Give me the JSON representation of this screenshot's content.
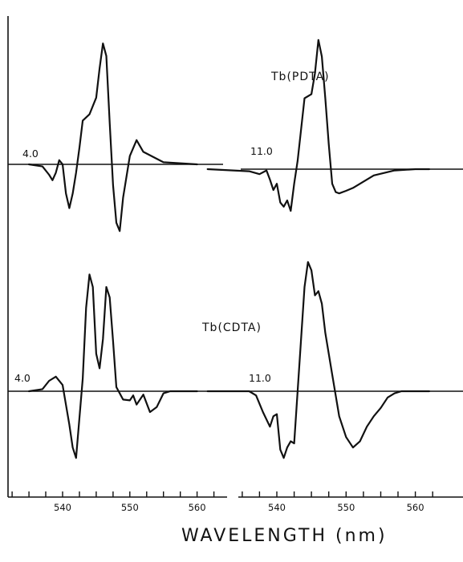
{
  "chart_data": [
    {
      "type": "line",
      "compound": "Tb(PDTA)",
      "ph": "4.0",
      "x": [
        535,
        537,
        538,
        538.5,
        539,
        539.5,
        540,
        540.5,
        541,
        541.5,
        542,
        542.5,
        543,
        544,
        545,
        545.5,
        546,
        546.5,
        547,
        547.5,
        548,
        548.5,
        549,
        550,
        551,
        552,
        555,
        560
      ],
      "y": [
        0,
        -0.05,
        -0.25,
        -0.38,
        -0.2,
        0.1,
        0,
        -0.7,
        -1.05,
        -0.7,
        -0.2,
        0.4,
        1.05,
        1.2,
        1.6,
        2.3,
        2.9,
        2.6,
        1.0,
        -0.5,
        -1.4,
        -1.6,
        -0.8,
        0.2,
        0.58,
        0.3,
        0.05,
        0
      ],
      "xlim": [
        530,
        562
      ],
      "ylabel": "",
      "xlabel": ""
    },
    {
      "type": "line",
      "compound": "Tb(PDTA)",
      "ph": "11.0",
      "x": [
        530,
        536,
        537.5,
        538.5,
        539,
        539.5,
        540,
        540.5,
        541,
        541.5,
        542,
        542.5,
        543,
        544,
        545,
        545.5,
        546,
        546.5,
        547,
        547.5,
        548,
        548.5,
        549,
        550,
        551,
        552,
        554,
        557,
        560,
        562
      ],
      "y": [
        0,
        -0.05,
        -0.12,
        -0.03,
        -0.25,
        -0.5,
        -0.35,
        -0.8,
        -0.9,
        -0.75,
        -1.0,
        -0.35,
        0.2,
        1.7,
        1.8,
        2.3,
        3.1,
        2.7,
        1.7,
        0.6,
        -0.35,
        -0.55,
        -0.58,
        -0.52,
        -0.45,
        -0.35,
        -0.15,
        -0.03,
        0,
        0
      ],
      "xlim": [
        532,
        565
      ],
      "ylabel": "",
      "xlabel": ""
    },
    {
      "type": "line",
      "compound": "Tb(CDTA)",
      "ph": "4.0",
      "x": [
        535,
        537,
        538,
        539,
        540,
        541,
        541.5,
        542,
        543,
        543.5,
        544,
        544.5,
        545,
        545.5,
        546,
        546.5,
        547,
        547.5,
        548,
        549,
        550,
        550.5,
        551,
        552,
        553,
        554,
        555,
        556,
        560
      ],
      "y": [
        0,
        0.05,
        0.25,
        0.35,
        0.15,
        -0.8,
        -1.35,
        -1.6,
        0.3,
        2.0,
        2.8,
        2.5,
        0.9,
        0.55,
        1.25,
        2.5,
        2.25,
        1.2,
        0.1,
        -0.2,
        -0.22,
        -0.1,
        -0.32,
        -0.08,
        -0.5,
        -0.38,
        -0.05,
        0,
        0
      ],
      "xlim": [
        530,
        562
      ],
      "ylabel": "",
      "xlabel": ""
    },
    {
      "type": "line",
      "compound": "Tb(CDTA)",
      "ph": "11.0",
      "x": [
        530,
        536,
        537,
        538,
        539,
        539.5,
        540,
        540.5,
        541,
        541.5,
        542,
        542.5,
        543,
        544,
        544.5,
        545,
        545.5,
        546,
        546.5,
        547,
        548,
        549,
        550,
        551,
        552,
        553,
        554,
        555,
        556,
        557,
        558,
        560,
        562
      ],
      "y": [
        0,
        0,
        -0.1,
        -0.5,
        -0.85,
        -0.6,
        -0.55,
        -1.4,
        -1.6,
        -1.35,
        -1.2,
        -1.25,
        0,
        2.5,
        3.1,
        2.9,
        2.3,
        2.4,
        2.1,
        1.4,
        0.4,
        -0.6,
        -1.1,
        -1.35,
        -1.2,
        -0.85,
        -0.6,
        -0.4,
        -0.15,
        -0.05,
        0,
        0,
        0
      ],
      "xlim": [
        532,
        565
      ],
      "ylabel": "",
      "xlabel": ""
    }
  ],
  "labels": {
    "compound_top": "Tb(PDTA)",
    "compound_bottom": "Tb(CDTA)",
    "ph_left_top": "4.0",
    "ph_right_top": "11.0",
    "ph_left_bottom": "4.0",
    "ph_right_bottom": "11.0",
    "xlabel": "WAVELENGTH (nm)"
  },
  "axes": {
    "left_ticks": [
      540,
      550,
      560
    ],
    "right_ticks": [
      540,
      550,
      560
    ]
  }
}
